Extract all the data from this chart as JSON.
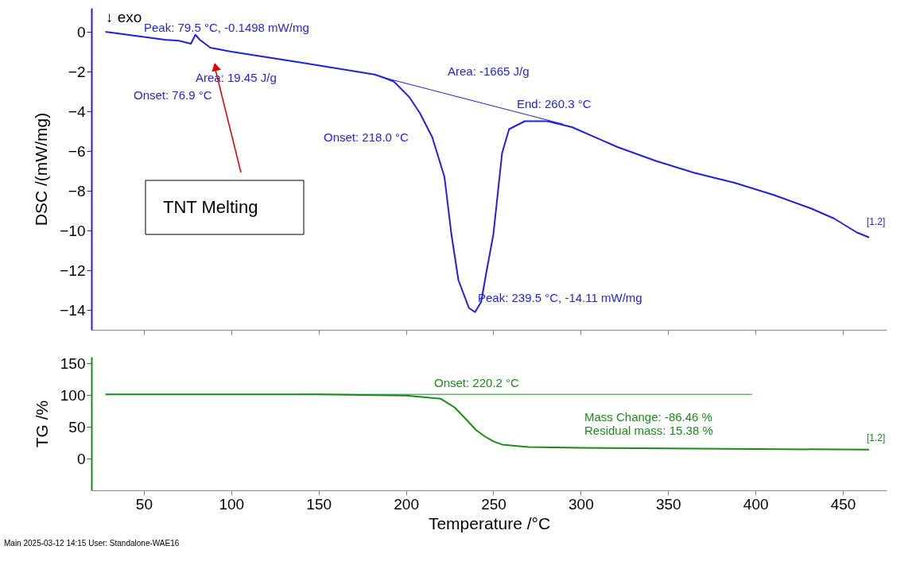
{
  "chart_data": [
    {
      "type": "line",
      "ylabel": "DSC /(mW/mg)",
      "xlim": [
        20,
        475
      ],
      "xticks": [
        50,
        100,
        150,
        200,
        250,
        300,
        350,
        400,
        450
      ],
      "ylim": [
        -15,
        1.2
      ],
      "yticks": [
        0,
        -2,
        -4,
        -6,
        -8,
        -10,
        -12,
        -14
      ],
      "tick_labels": "y",
      "series": [
        {
          "color": "#1f1fe6",
          "x": [
            28,
            45,
            62,
            70,
            76.9,
            79.5,
            82,
            88,
            100,
            140,
            182,
            187,
            193,
            202,
            208,
            215,
            222,
            226,
            230,
            236,
            239.5,
            243,
            246,
            250,
            255,
            259,
            268,
            281,
            295,
            321,
            343,
            365,
            388,
            410,
            432,
            445,
            458,
            465
          ],
          "values": [
            0,
            -0.2,
            -0.4,
            -0.45,
            -0.6,
            -0.15,
            -0.4,
            -0.8,
            -1.0,
            -1.55,
            -2.15,
            -2.3,
            -2.5,
            -3.3,
            -4.1,
            -5.3,
            -7.3,
            -10.2,
            -12.5,
            -13.9,
            -14.11,
            -13.6,
            -12.1,
            -10.2,
            -6.1,
            -4.9,
            -4.5,
            -4.5,
            -4.8,
            -5.8,
            -6.5,
            -7.1,
            -7.6,
            -8.2,
            -8.9,
            -9.4,
            -10.1,
            -10.35
          ]
        },
        {
          "color": "#1f1fe6",
          "x": [
            187,
            290
          ],
          "values": [
            -2.3,
            -4.65
          ]
        }
      ],
      "annotations": [
        "Peak: 79.5 °C, -0.1498 mW/mg",
        "Area: 19.45 J/g",
        "Onset: 76.9 °C",
        "Area: -1665 J/g",
        "End: 260.3 °C",
        "Onset: 218.0 °C",
        "Peak: 239.5 °C, -14.11 mW/mg",
        "[1.2]",
        "↓ exo",
        "TNT Melting"
      ]
    },
    {
      "type": "line",
      "ylabel": "TG /%",
      "xlabel": "Temperature /°C",
      "xlim": [
        20,
        475
      ],
      "xticks": [
        50,
        100,
        150,
        200,
        250,
        300,
        350,
        400,
        450
      ],
      "ylim": [
        -50,
        160
      ],
      "yticks": [
        0,
        50,
        100,
        150
      ],
      "series": [
        {
          "color": "#1a8a1a",
          "x": [
            28,
            100,
            150,
            200,
            220,
            228,
            235,
            240,
            245,
            250,
            255,
            270,
            300,
            350,
            400,
            465
          ],
          "values": [
            101,
            101,
            101,
            99,
            94,
            80,
            60,
            45,
            35,
            27,
            22,
            18,
            17,
            16,
            15,
            14
          ]
        },
        {
          "color": "#1a8a1a",
          "x": [
            140,
            398
          ],
          "values": [
            101,
            101
          ]
        }
      ],
      "annotations": [
        "Onset: 220.2 °C",
        "Mass Change:   -86.46 %",
        "Residual mass:   15.38 %",
        "[1.2]",
        "Main   2025-03-12 14:15   User: Standalone-WAE16"
      ]
    }
  ]
}
